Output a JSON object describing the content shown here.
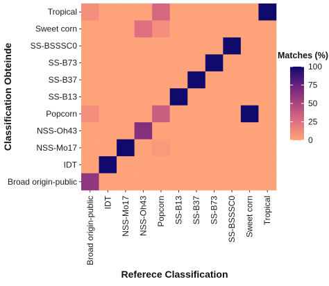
{
  "chart_data": {
    "type": "heatmap",
    "xlabel": "Referece Classification",
    "ylabel": "Classification Obteinde",
    "x_categories": [
      "Broad origin-public",
      "IDT",
      "NSS-Mo17",
      "NSS-Oh43",
      "Popcorn",
      "SS-B13",
      "SS-B37",
      "SS-B73",
      "SS-BSSSC0",
      "Sweet corn",
      "Tropical"
    ],
    "y_categories": [
      "Tropical",
      "Sweet corn",
      "SS-BSSSC0",
      "SS-B73",
      "SS-B37",
      "SS-B13",
      "Popcorn",
      "NSS-Oh43",
      "NSS-Mo17",
      "IDT",
      "Broad origin-public"
    ],
    "values": [
      [
        10,
        0,
        0,
        0,
        30,
        0,
        0,
        0,
        0,
        0,
        100
      ],
      [
        0,
        0,
        0,
        25,
        10,
        0,
        0,
        0,
        0,
        0,
        0
      ],
      [
        0,
        0,
        0,
        0,
        0,
        0,
        0,
        0,
        100,
        0,
        0
      ],
      [
        0,
        0,
        0,
        0,
        0,
        0,
        0,
        100,
        0,
        0,
        0
      ],
      [
        0,
        0,
        0,
        0,
        0,
        0,
        100,
        0,
        0,
        0,
        0
      ],
      [
        0,
        0,
        0,
        0,
        0,
        100,
        0,
        0,
        0,
        0,
        0
      ],
      [
        10,
        0,
        0,
        0,
        35,
        0,
        0,
        0,
        0,
        100,
        0
      ],
      [
        0,
        0,
        0,
        65,
        0,
        0,
        0,
        0,
        0,
        0,
        0
      ],
      [
        0,
        0,
        100,
        0,
        5,
        0,
        0,
        0,
        0,
        0,
        0
      ],
      [
        0,
        100,
        0,
        0,
        0,
        0,
        0,
        0,
        0,
        0,
        0
      ],
      [
        60,
        0,
        0,
        0,
        0,
        0,
        0,
        0,
        0,
        0,
        0
      ]
    ],
    "value_range": [
      0,
      100
    ],
    "grid": false,
    "legend": {
      "title": "Matches (%)",
      "ticks": [
        "100",
        "75",
        "50",
        "25",
        "0"
      ],
      "tick_values": [
        100,
        75,
        50,
        25,
        0
      ],
      "placement": "right",
      "colors": [
        "#ffa47a",
        "#e07080",
        "#a8467f",
        "#6a227c",
        "#0f0a6b"
      ]
    },
    "panel_background": "#ebebeb"
  }
}
